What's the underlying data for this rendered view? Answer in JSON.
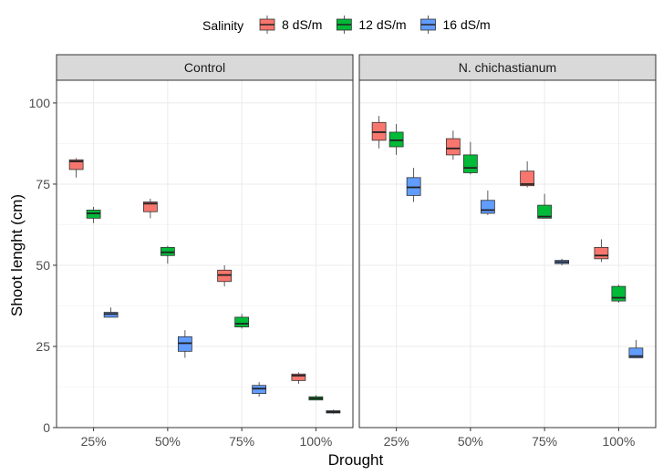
{
  "chart_data": {
    "type": "boxplot",
    "xlabel": "Drought",
    "ylabel": "Shoot lenght (cm)",
    "ylim": [
      0,
      107
    ],
    "yticks": [
      0,
      25,
      50,
      75,
      100
    ],
    "categories": [
      "25%",
      "50%",
      "75%",
      "100%"
    ],
    "grid": true,
    "legend": {
      "position": "top",
      "title": "Salinity",
      "entries": [
        {
          "name": "8 dS/m",
          "color": "#F8766D"
        },
        {
          "name": "12 dS/m",
          "color": "#00BA38"
        },
        {
          "name": "16 dS/m",
          "color": "#619CFF"
        }
      ]
    },
    "facets": [
      {
        "label": "Control",
        "series": [
          {
            "name": "8 dS/m",
            "boxes": [
              {
                "min": 77,
                "q1": 79.5,
                "median": 82,
                "q3": 82.5,
                "max": 83
              },
              {
                "min": 64.5,
                "q1": 66.5,
                "median": 69,
                "q3": 69.5,
                "max": 70.5
              },
              {
                "min": 43.5,
                "q1": 45,
                "median": 47,
                "q3": 48.5,
                "max": 50
              },
              {
                "min": 13.5,
                "q1": 14.5,
                "median": 16,
                "q3": 16.5,
                "max": 17
              }
            ]
          },
          {
            "name": "12 dS/m",
            "boxes": [
              {
                "min": 63,
                "q1": 64.5,
                "median": 66,
                "q3": 67,
                "max": 68
              },
              {
                "min": 50.5,
                "q1": 53,
                "median": 54,
                "q3": 55.5,
                "max": 56
              },
              {
                "min": 30.5,
                "q1": 31,
                "median": 32,
                "q3": 34,
                "max": 35
              },
              {
                "min": 8.5,
                "q1": 8.5,
                "median": 9,
                "q3": 9.5,
                "max": 10
              }
            ]
          },
          {
            "name": "16 dS/m",
            "boxes": [
              {
                "min": 34,
                "q1": 34,
                "median": 35,
                "q3": 35.5,
                "max": 37
              },
              {
                "min": 21.5,
                "q1": 23.5,
                "median": 26,
                "q3": 28,
                "max": 30
              },
              {
                "min": 9.5,
                "q1": 10.5,
                "median": 12,
                "q3": 13,
                "max": 14
              },
              {
                "min": 4.3,
                "q1": 4.5,
                "median": 4.8,
                "q3": 5.2,
                "max": 5.5
              }
            ]
          }
        ]
      },
      {
        "label": "N. chichastianum",
        "series": [
          {
            "name": "8 dS/m",
            "boxes": [
              {
                "min": 86,
                "q1": 88.5,
                "median": 91,
                "q3": 94,
                "max": 96
              },
              {
                "min": 82.5,
                "q1": 84,
                "median": 86,
                "q3": 89,
                "max": 91.5
              },
              {
                "min": 74,
                "q1": 74.5,
                "median": 75,
                "q3": 79,
                "max": 82
              },
              {
                "min": 51,
                "q1": 52,
                "median": 53,
                "q3": 55.5,
                "max": 58
              }
            ]
          },
          {
            "name": "12 dS/m",
            "boxes": [
              {
                "min": 84,
                "q1": 86.5,
                "median": 88.5,
                "q3": 91,
                "max": 93.5
              },
              {
                "min": 78,
                "q1": 78.5,
                "median": 80,
                "q3": 84,
                "max": 88
              },
              {
                "min": 64.5,
                "q1": 64.5,
                "median": 65,
                "q3": 68.5,
                "max": 72
              },
              {
                "min": 38.5,
                "q1": 39,
                "median": 40,
                "q3": 43.5,
                "max": 44
              }
            ]
          },
          {
            "name": "16 dS/m",
            "boxes": [
              {
                "min": 69.5,
                "q1": 71.5,
                "median": 74,
                "q3": 77,
                "max": 80
              },
              {
                "min": 65.5,
                "q1": 66,
                "median": 67,
                "q3": 70,
                "max": 73
              },
              {
                "min": 50,
                "q1": 50.5,
                "median": 51,
                "q3": 51.5,
                "max": 52
              },
              {
                "min": 21.5,
                "q1": 21.5,
                "median": 22,
                "q3": 24.5,
                "max": 27
              }
            ]
          }
        ]
      }
    ]
  }
}
